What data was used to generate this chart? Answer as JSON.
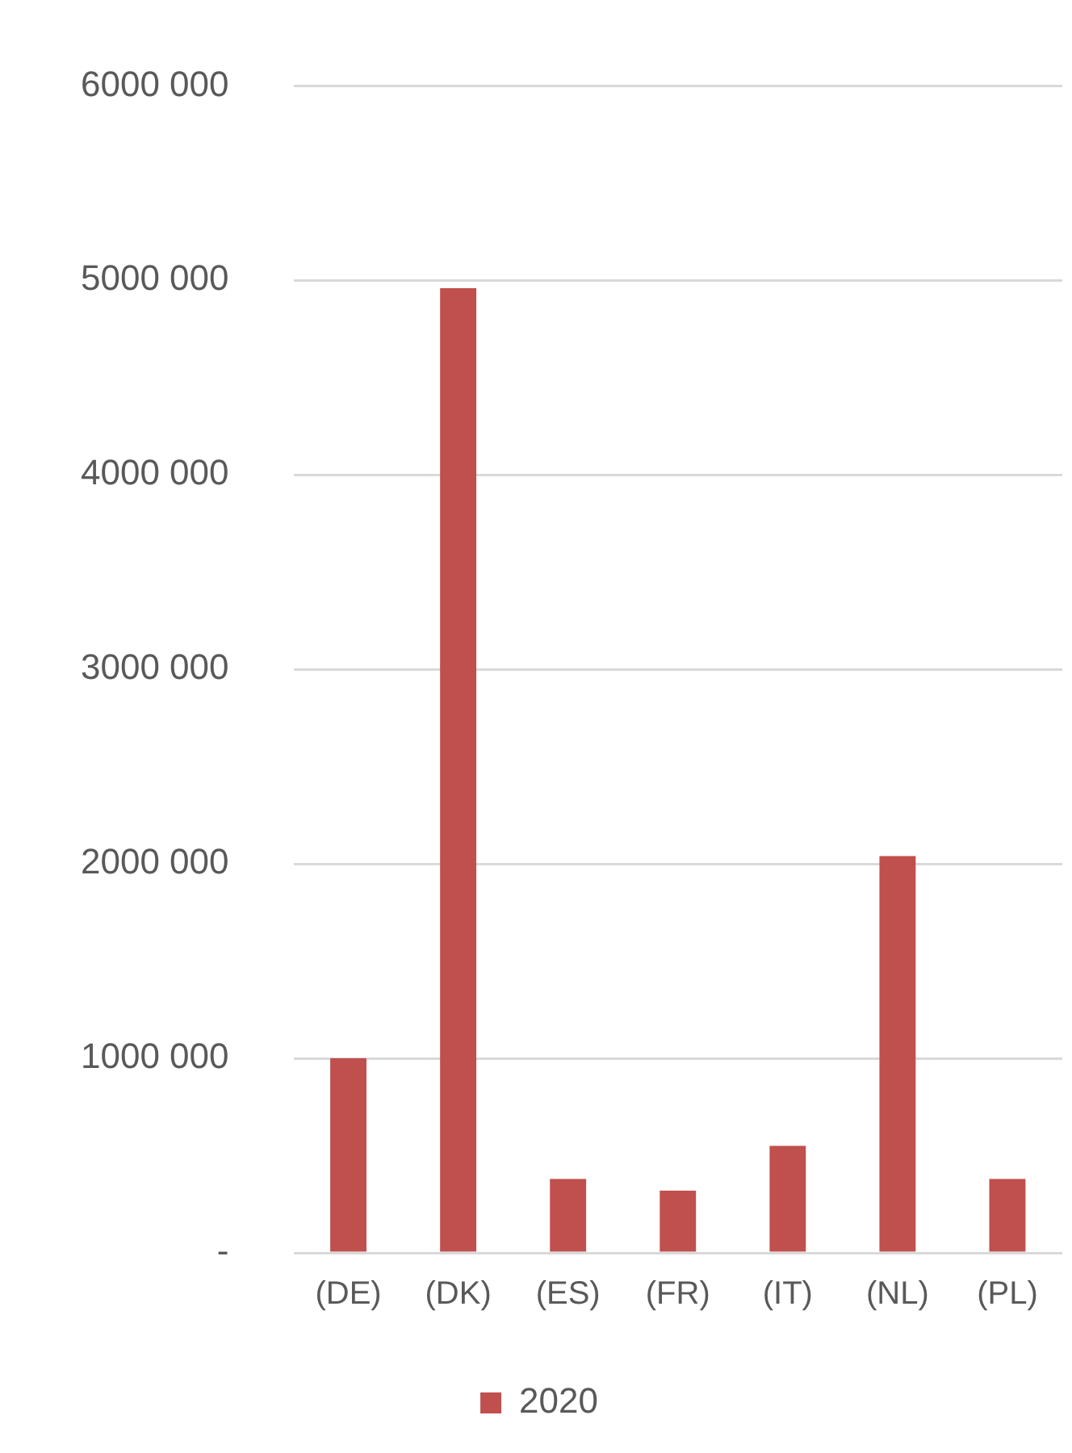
{
  "chart_data": {
    "type": "bar",
    "categories": [
      "(DE)",
      "(DK)",
      "(ES)",
      "(FR)",
      "(IT)",
      "(NL)",
      "(PL)"
    ],
    "series": [
      {
        "name": "2020",
        "color": "#c0504d",
        "values": [
          1000000,
          4960000,
          380000,
          320000,
          550000,
          2040000,
          380000
        ]
      }
    ],
    "ylim": [
      0,
      6000000
    ],
    "yticks": [
      {
        "value": 0,
        "label": "-"
      },
      {
        "value": 1000000,
        "label": "1000 000"
      },
      {
        "value": 2000000,
        "label": "2000 000"
      },
      {
        "value": 3000000,
        "label": "3000 000"
      },
      {
        "value": 4000000,
        "label": "4000 000"
      },
      {
        "value": 5000000,
        "label": "5000 000"
      },
      {
        "value": 6000000,
        "label": "6000 000"
      }
    ],
    "grid": "y",
    "legend": "bottom"
  }
}
